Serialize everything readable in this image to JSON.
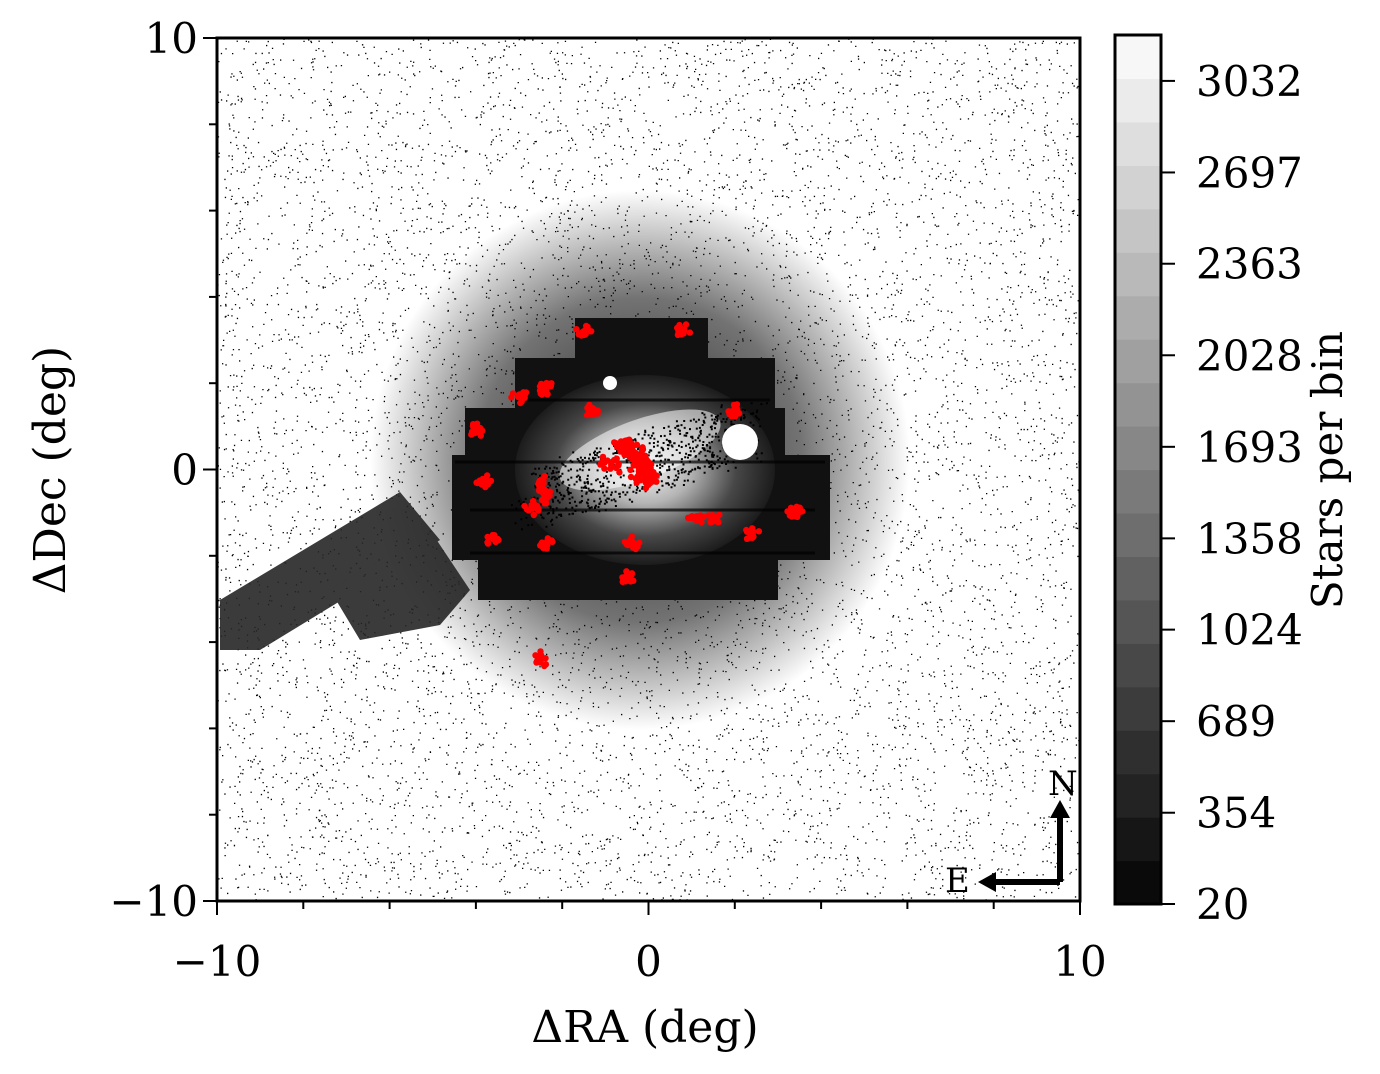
{
  "chart_data": {
    "type": "scatter",
    "title": "",
    "xlabel": "ΔRA (deg)",
    "ylabel": "ΔDec (deg)",
    "xlim": [
      -10,
      10
    ],
    "ylim": [
      -10,
      10
    ],
    "x_ticks": [
      -10,
      0,
      10
    ],
    "y_ticks": [
      -10,
      0,
      10
    ],
    "x_tick_labels": [
      "−10",
      "0",
      "10"
    ],
    "y_tick_labels": [
      "−10",
      "0",
      "10"
    ],
    "grid": false,
    "legend": "none",
    "background_points": {
      "color": "#000000",
      "description_only": true
    },
    "highlight_color": "#ff0000",
    "highlighted_clumps": [
      {
        "x": -1.5,
        "y": 3.2
      },
      {
        "x": 0.8,
        "y": 3.2
      },
      {
        "x": -2.4,
        "y": 1.9
      },
      {
        "x": -3.0,
        "y": 1.7
      },
      {
        "x": -1.3,
        "y": 1.4
      },
      {
        "x": 2.0,
        "y": 1.4
      },
      {
        "x": -4.0,
        "y": 0.9
      },
      {
        "x": -3.8,
        "y": -0.3
      },
      {
        "x": -2.5,
        "y": -0.3
      },
      {
        "x": -2.4,
        "y": -0.6
      },
      {
        "x": -2.7,
        "y": -0.9
      },
      {
        "x": -3.6,
        "y": -1.6
      },
      {
        "x": -2.4,
        "y": -1.7
      },
      {
        "x": -0.4,
        "y": -1.7
      },
      {
        "x": -0.5,
        "y": -2.5
      },
      {
        "x": 2.4,
        "y": -1.5
      },
      {
        "x": 3.4,
        "y": -1.0
      },
      {
        "x": -2.5,
        "y": -4.4
      },
      {
        "x": 1.5,
        "y": -1.1
      },
      {
        "x": 1.1,
        "y": -1.1
      }
    ],
    "highlighted_bar": [
      {
        "x": -0.7,
        "y": 0.6
      },
      {
        "x": -0.3,
        "y": 0.4
      },
      {
        "x": -0.1,
        "y": 0.0
      },
      {
        "x": 0.1,
        "y": -0.3
      },
      {
        "x": -1.1,
        "y": 0.2
      }
    ],
    "colorbar": {
      "label": "Stars per bin",
      "min": 20,
      "max": 3200,
      "ticks": [
        20,
        354,
        689,
        1024,
        1358,
        1693,
        2028,
        2363,
        2697,
        3032
      ],
      "tick_labels": [
        "20",
        "354",
        "689",
        "1024",
        "1358",
        "1693",
        "2028",
        "2363",
        "2697",
        "3032"
      ],
      "levels": 20,
      "colormap": "greys_r"
    },
    "compass": {
      "north_label": "N",
      "east_label": "E"
    }
  }
}
